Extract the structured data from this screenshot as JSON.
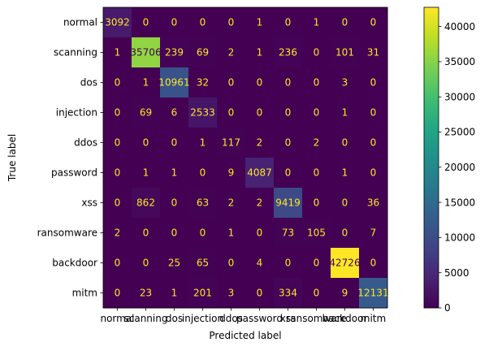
{
  "chart_data": {
    "type": "heatmap",
    "title": "",
    "xlabel": "Predicted label",
    "ylabel": "True label",
    "categories": [
      "normal",
      "scanning",
      "dos",
      "injection",
      "ddos",
      "password",
      "xss",
      "ransomware",
      "backdoor",
      "mitm"
    ],
    "matrix": [
      [
        3092,
        0,
        0,
        0,
        0,
        1,
        0,
        1,
        0,
        0
      ],
      [
        1,
        35706,
        239,
        69,
        2,
        1,
        236,
        0,
        101,
        31
      ],
      [
        0,
        1,
        10961,
        32,
        0,
        0,
        0,
        0,
        3,
        0
      ],
      [
        0,
        69,
        6,
        2533,
        0,
        0,
        0,
        0,
        1,
        0
      ],
      [
        0,
        0,
        0,
        1,
        117,
        2,
        0,
        2,
        0,
        0
      ],
      [
        0,
        1,
        1,
        0,
        9,
        4087,
        0,
        0,
        1,
        0
      ],
      [
        0,
        862,
        0,
        63,
        2,
        2,
        9419,
        0,
        0,
        36
      ],
      [
        2,
        0,
        0,
        0,
        1,
        0,
        73,
        105,
        0,
        7
      ],
      [
        0,
        0,
        25,
        65,
        0,
        4,
        0,
        0,
        42726,
        0
      ],
      [
        0,
        23,
        1,
        201,
        3,
        0,
        334,
        0,
        9,
        12131
      ]
    ],
    "colorbar": {
      "colormap": "viridis",
      "range": [
        0,
        42726
      ],
      "ticks": [
        0,
        5000,
        10000,
        15000,
        20000,
        25000,
        30000,
        35000,
        40000
      ]
    },
    "text_colors": {
      "on_dark": "#fde725",
      "on_light": "#440154"
    },
    "grid": false
  }
}
